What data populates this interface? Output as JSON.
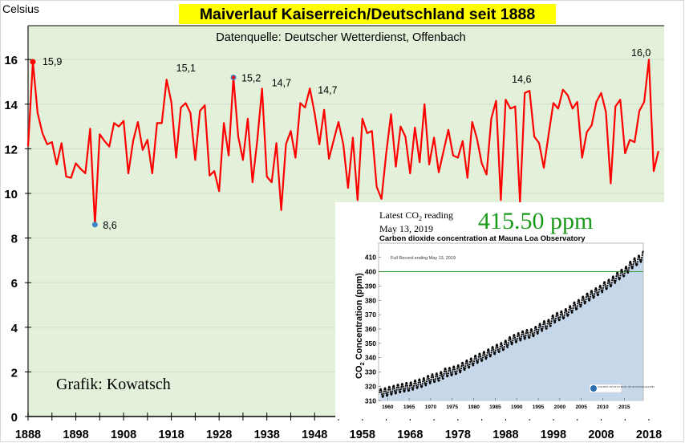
{
  "chart_data": [
    {
      "type": "line",
      "title": "Maiverlauf Kaiserreich/Deutschland seit 1888",
      "subtitle": "Datenquelle: Deutscher Wetterdienst, Offenbach",
      "ylabel": "Celsius",
      "xlabel": "",
      "credit": "Grafik: Kowatsch",
      "xlim": [
        1888,
        2021
      ],
      "ylim": [
        0,
        17.5
      ],
      "grid": true,
      "x_ticks": [
        1888,
        1898,
        1908,
        1918,
        1928,
        1938,
        1948,
        1958,
        1968,
        1978,
        1988,
        1998,
        2008,
        2018
      ],
      "y_ticks": [
        0,
        2,
        4,
        6,
        8,
        10,
        12,
        14,
        16
      ],
      "x_start": 1888,
      "series": [
        {
          "color": "#ff0000",
          "values": [
            12.1,
            15.9,
            13.6,
            12.7,
            12.2,
            12.3,
            11.3,
            12.25,
            10.75,
            10.7,
            11.35,
            11.1,
            10.9,
            12.9,
            8.6,
            12.65,
            12.35,
            12.1,
            13.15,
            13.0,
            13.25,
            10.9,
            12.35,
            13.2,
            11.95,
            12.4,
            10.9,
            13.15,
            13.15,
            15.1,
            14.1,
            11.6,
            13.85,
            14.05,
            13.6,
            11.5,
            13.7,
            13.95,
            10.8,
            11.0,
            10.1,
            13.15,
            11.7,
            15.2,
            12.55,
            11.5,
            13.35,
            10.5,
            12.4,
            14.7,
            10.75,
            10.5,
            12.25,
            9.25,
            12.2,
            12.8,
            11.6,
            14.05,
            13.85,
            14.7,
            13.6,
            12.2,
            13.75,
            11.55,
            12.4,
            13.2,
            12.2,
            10.25,
            12.5,
            9.7,
            13.35,
            12.7,
            12.8,
            10.3,
            9.75,
            11.8,
            13.55,
            11.2,
            13.0,
            12.55,
            10.9,
            12.95,
            11.4,
            14.0,
            11.3,
            12.5,
            10.95,
            11.9,
            12.85,
            11.7,
            11.6,
            12.35,
            10.7,
            13.2,
            12.45,
            11.35,
            10.85,
            13.35,
            14.15,
            9.7,
            14.2,
            13.8,
            13.9,
            9.6,
            14.5,
            14.6,
            12.55,
            12.25,
            11.15,
            12.65,
            14.05,
            13.8,
            14.65,
            14.4,
            13.8,
            14.1,
            11.6,
            12.75,
            13.05,
            14.1,
            14.5,
            13.65,
            10.45,
            13.9,
            14.2,
            11.8,
            12.4,
            12.3,
            13.7,
            14.1,
            16.0,
            11.0,
            11.9
          ]
        }
      ],
      "annotations": [
        {
          "year": 1889,
          "value": 15.9,
          "label": "15,9",
          "marker": "red"
        },
        {
          "year": 1902,
          "value": 8.6,
          "label": "8,6",
          "marker": "blue"
        },
        {
          "year": 1917,
          "value": 15.1,
          "label": "15,1"
        },
        {
          "year": 1931,
          "value": 15.2,
          "label": "15,2",
          "marker": "blue-red"
        },
        {
          "year": 1937,
          "value": 14.7,
          "label": "14,7"
        },
        {
          "year": 1947,
          "value": 14.7,
          "label": "14,7"
        },
        {
          "year": 1993,
          "value": 14.6,
          "label": "14,6"
        },
        {
          "year": 2018,
          "value": 16.0,
          "label": "16,0"
        }
      ],
      "colors": {
        "plot_bg": "#e3f0da",
        "title_bg": "#ffff00",
        "marker_red": "#ff0000",
        "marker_blue": "#3d85c6"
      }
    },
    {
      "type": "scatter",
      "header_line1": "Latest CO",
      "header_line1_sub": "2",
      "header_line1_end": " reading",
      "header_line2": "May 13, 2019",
      "latest_value": "415.50 ppm",
      "title": "Carbon dioxide concentration at Mauna Loa Observatory",
      "note": "Full Record ending May 13, 2019",
      "ylabel": "CO",
      "ylabel_sub": "2",
      "ylabel_end": " Concentration (ppm)",
      "logo": "SCRIPPS INSTITUTION OF OCEANOGRAPHY",
      "xlim": [
        1958,
        2019.5
      ],
      "ylim": [
        310,
        415
      ],
      "x_ticks": [
        1960,
        1965,
        1970,
        1975,
        1980,
        1985,
        1990,
        1995,
        2000,
        2005,
        2010,
        2015
      ],
      "y_ticks": [
        310,
        320,
        330,
        340,
        350,
        360,
        370,
        380,
        390,
        400,
        410
      ],
      "reference_line": 400,
      "seasonal_amplitude_ppm": 3,
      "annual_means": {
        "years": [
          1958,
          1959,
          1960,
          1961,
          1962,
          1963,
          1964,
          1965,
          1966,
          1967,
          1968,
          1969,
          1970,
          1971,
          1972,
          1973,
          1974,
          1975,
          1976,
          1977,
          1978,
          1979,
          1980,
          1981,
          1982,
          1983,
          1984,
          1985,
          1986,
          1987,
          1988,
          1989,
          1990,
          1991,
          1992,
          1993,
          1994,
          1995,
          1996,
          1997,
          1998,
          1999,
          2000,
          2001,
          2002,
          2003,
          2004,
          2005,
          2006,
          2007,
          2008,
          2009,
          2010,
          2011,
          2012,
          2013,
          2014,
          2015,
          2016,
          2017,
          2018,
          2019
        ],
        "values": [
          315.3,
          315.97,
          316.91,
          317.64,
          318.45,
          318.99,
          319.62,
          320.04,
          321.38,
          322.16,
          323.04,
          324.62,
          325.68,
          326.32,
          327.46,
          329.68,
          330.19,
          331.12,
          332.03,
          333.84,
          335.41,
          336.84,
          338.76,
          340.12,
          341.48,
          343.15,
          344.85,
          346.35,
          347.61,
          349.31,
          351.69,
          353.2,
          354.45,
          355.7,
          356.54,
          357.21,
          358.96,
          360.97,
          362.74,
          363.88,
          366.84,
          368.54,
          369.71,
          371.32,
          373.45,
          375.98,
          377.7,
          379.98,
          382.09,
          384.02,
          385.83,
          387.64,
          390.1,
          391.85,
          394.06,
          396.74,
          398.87,
          401.01,
          404.41,
          406.76,
          408.72,
          411.5
        ]
      },
      "colors": {
        "fill": "#c6d7e9",
        "points": "#000000",
        "reference": "#2e9e2e",
        "latest_value": "#1a9a1a"
      }
    }
  ]
}
